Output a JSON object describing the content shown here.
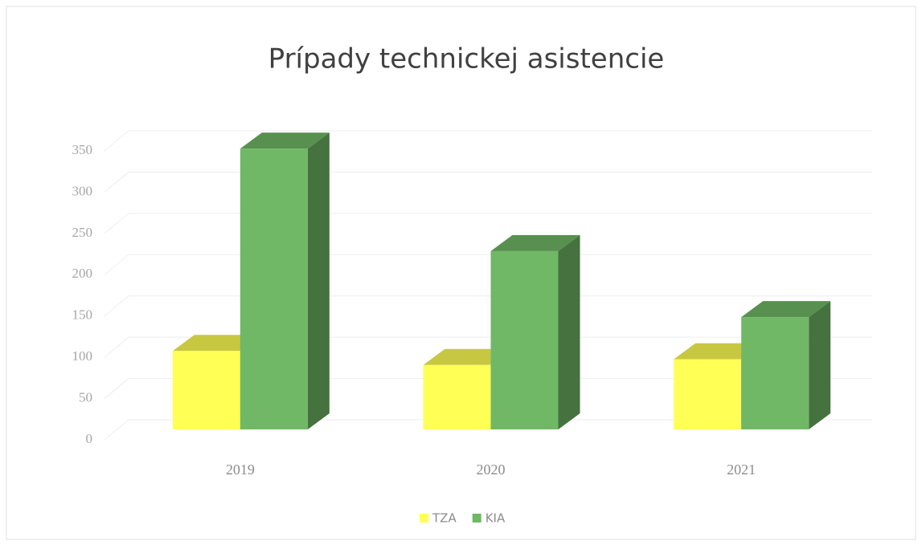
{
  "chart_data": {
    "type": "bar3d",
    "title": "Prípady technickej asistencie",
    "categories": [
      "2019",
      "2020",
      "2021"
    ],
    "series": [
      {
        "name": "TZA",
        "color": "#ffff55",
        "values": [
          95,
          78,
          85
        ]
      },
      {
        "name": "KIA",
        "color": "#70b865",
        "values": [
          340,
          216,
          136
        ]
      }
    ],
    "ylim": [
      0,
      350
    ],
    "yticks": [
      0,
      50,
      100,
      150,
      200,
      250,
      300,
      350
    ],
    "grid": true,
    "legend": "bottom"
  }
}
